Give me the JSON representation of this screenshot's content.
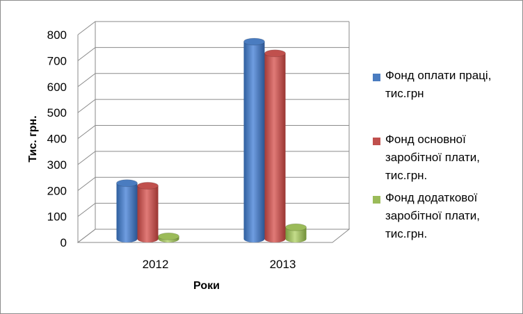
{
  "chart_data": {
    "type": "bar",
    "ylabel": "Тис. грн.",
    "xlabel": "Роки",
    "categories": [
      "2012",
      "2013"
    ],
    "ylim": [
      0,
      800
    ],
    "yticks": [
      "0",
      "100",
      "200",
      "300",
      "400",
      "500",
      "600",
      "700",
      "800"
    ],
    "grid": true,
    "legend_position": "right",
    "series": [
      {
        "name": "Фонд оплати праці, тис.грн",
        "values": [
          215,
          760
        ],
        "color": "#4a7cc0"
      },
      {
        "name": "Фонд основної заробітної плати, тис.грн.",
        "values": [
          205,
          715
        ],
        "color": "#c0504d"
      },
      {
        "name": "Фонд додаткової заробітної плати, тис.грн.",
        "values": [
          10,
          45
        ],
        "color": "#9bbb59"
      }
    ]
  },
  "legend": {
    "items": [
      {
        "lines": [
          "Фонд оплати праці,",
          "тис.грн"
        ]
      },
      {
        "lines": [
          "Фонд основної",
          "заробітної плати,",
          "тис.грн."
        ]
      },
      {
        "lines": [
          "Фонд додаткової",
          "заробітної плати,",
          "тис.грн."
        ]
      }
    ]
  }
}
